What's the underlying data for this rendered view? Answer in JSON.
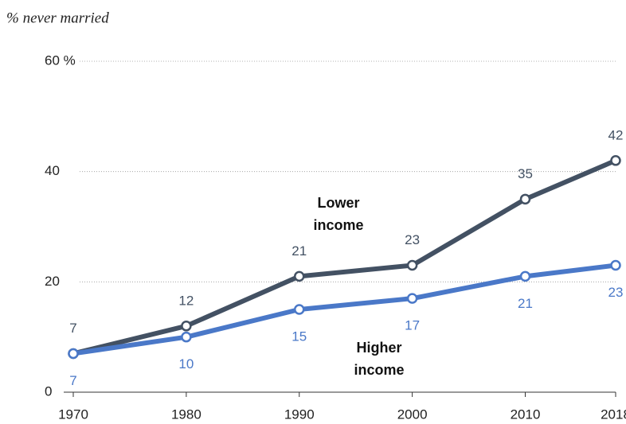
{
  "chart_data": {
    "type": "line",
    "title": "% never married",
    "x": [
      1970,
      1980,
      1990,
      2000,
      2010,
      2018
    ],
    "xlim": [
      1970,
      2018
    ],
    "xticks": [
      1970,
      1980,
      1990,
      2000,
      2010,
      2018
    ],
    "ylim": [
      0,
      60
    ],
    "yticks": [
      0,
      20,
      40,
      {
        "value": 60,
        "label": "60 %"
      }
    ],
    "grid": true,
    "series": [
      {
        "name": "Lower income",
        "color": "#435163",
        "values": [
          7,
          12,
          21,
          23,
          35,
          42
        ]
      },
      {
        "name": "Higher income",
        "color": "#4a78c8",
        "values": [
          7,
          10,
          15,
          17,
          21,
          23
        ]
      }
    ]
  }
}
